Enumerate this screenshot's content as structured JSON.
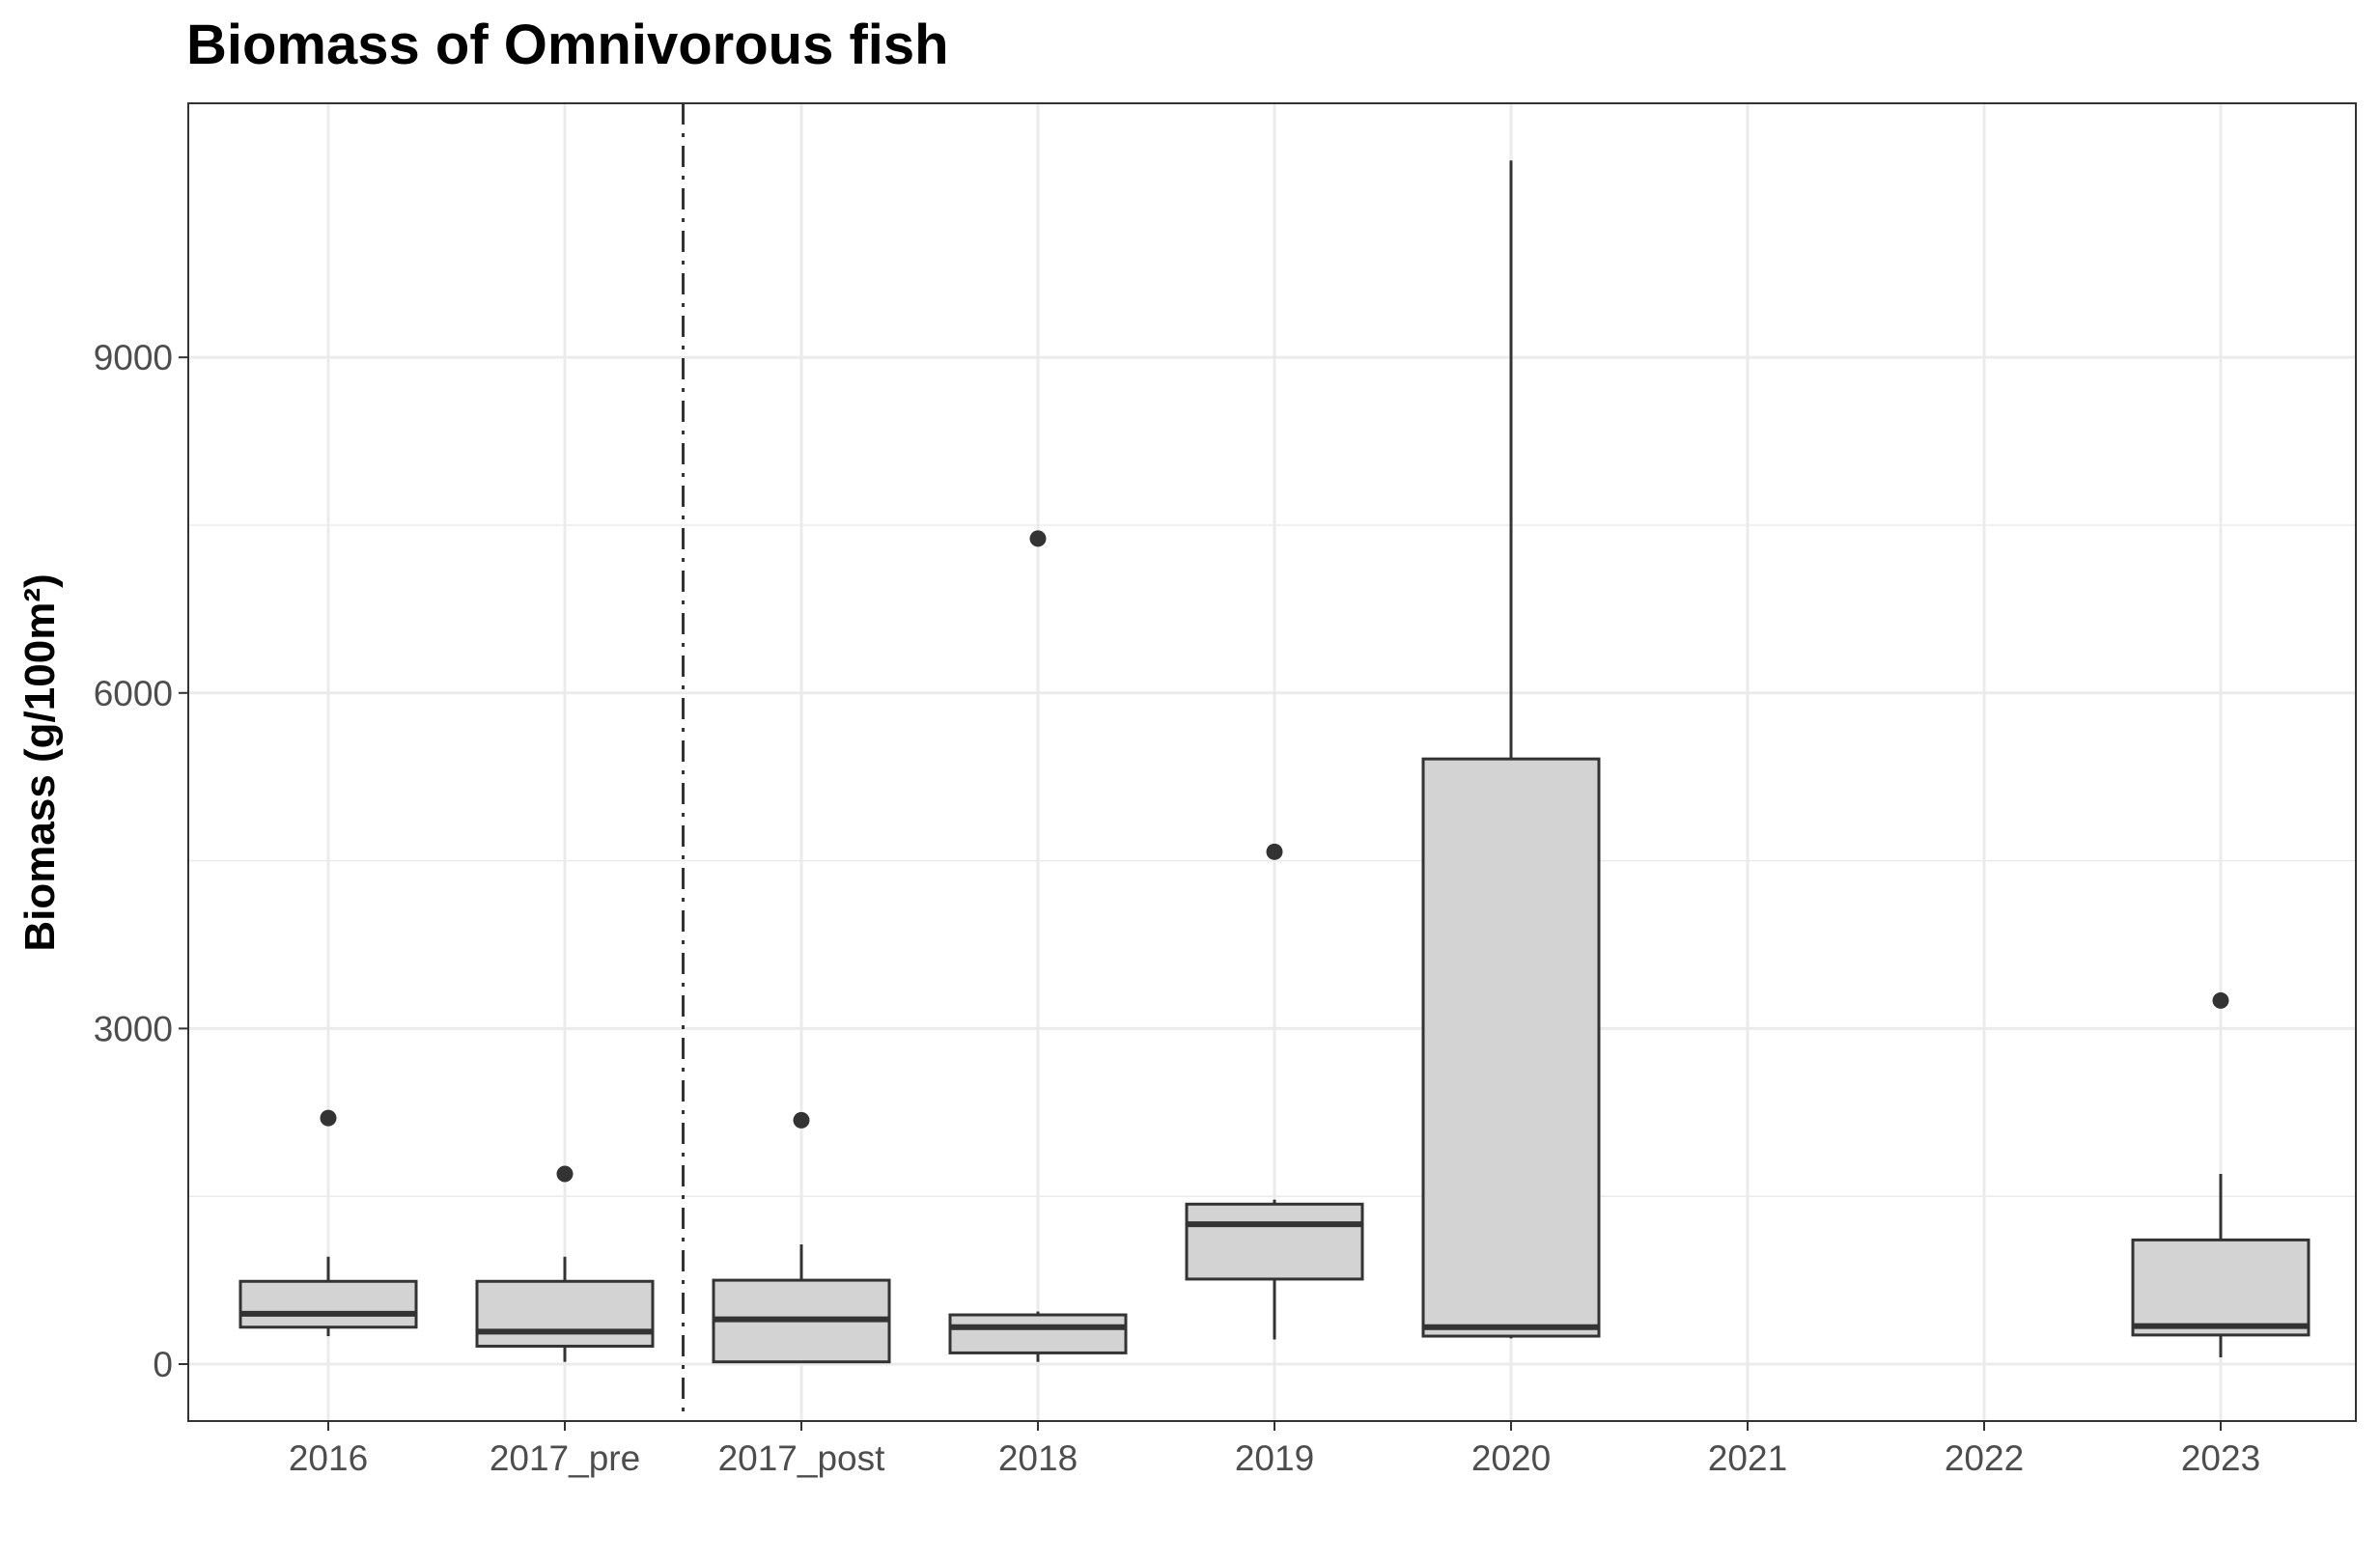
{
  "chart_data": {
    "type": "boxplot",
    "title": "Biomass of Omnivorous fish",
    "xlabel": "",
    "ylabel": "Biomass (g/100m²)",
    "ylim": [
      -520,
      11300
    ],
    "yticks": [
      0,
      3000,
      6000,
      9000
    ],
    "grid": true,
    "legend": "none",
    "categories": [
      "2016",
      "2017_pre",
      "2017_post",
      "2018",
      "2019",
      "2020",
      "2021",
      "2022",
      "2023"
    ],
    "boxes": [
      {
        "category": "2016",
        "whisker_low": 250,
        "q1": 330,
        "median": 450,
        "q3": 740,
        "whisker_high": 960,
        "outliers": [
          2200
        ]
      },
      {
        "category": "2017_pre",
        "whisker_low": 20,
        "q1": 160,
        "median": 290,
        "q3": 740,
        "whisker_high": 960,
        "outliers": [
          1700
        ]
      },
      {
        "category": "2017_post",
        "whisker_low": 20,
        "q1": 20,
        "median": 400,
        "q3": 750,
        "whisker_high": 1070,
        "outliers": [
          2180
        ]
      },
      {
        "category": "2018",
        "whisker_low": 20,
        "q1": 100,
        "median": 330,
        "q3": 440,
        "whisker_high": 470,
        "outliers": [
          7380
        ]
      },
      {
        "category": "2019",
        "whisker_low": 220,
        "q1": 760,
        "median": 1250,
        "q3": 1430,
        "whisker_high": 1470,
        "outliers": [
          4580
        ]
      },
      {
        "category": "2020",
        "whisker_low": 230,
        "q1": 250,
        "median": 330,
        "q3": 5410,
        "whisker_high": 10760,
        "outliers": []
      },
      {
        "category": "2023",
        "whisker_low": 60,
        "q1": 260,
        "median": 340,
        "q3": 1110,
        "whisker_high": 1700,
        "outliers": [
          3250
        ]
      }
    ],
    "reference_line": {
      "type": "vertical",
      "between": [
        "2017_pre",
        "2017_post"
      ],
      "style": "dashdot"
    },
    "colors": {
      "box_fill": "#d3d3d3",
      "box_stroke": "#333333",
      "grid": "#ebebeb",
      "panel_border": "#333333",
      "ref_line": "#333333"
    }
  }
}
